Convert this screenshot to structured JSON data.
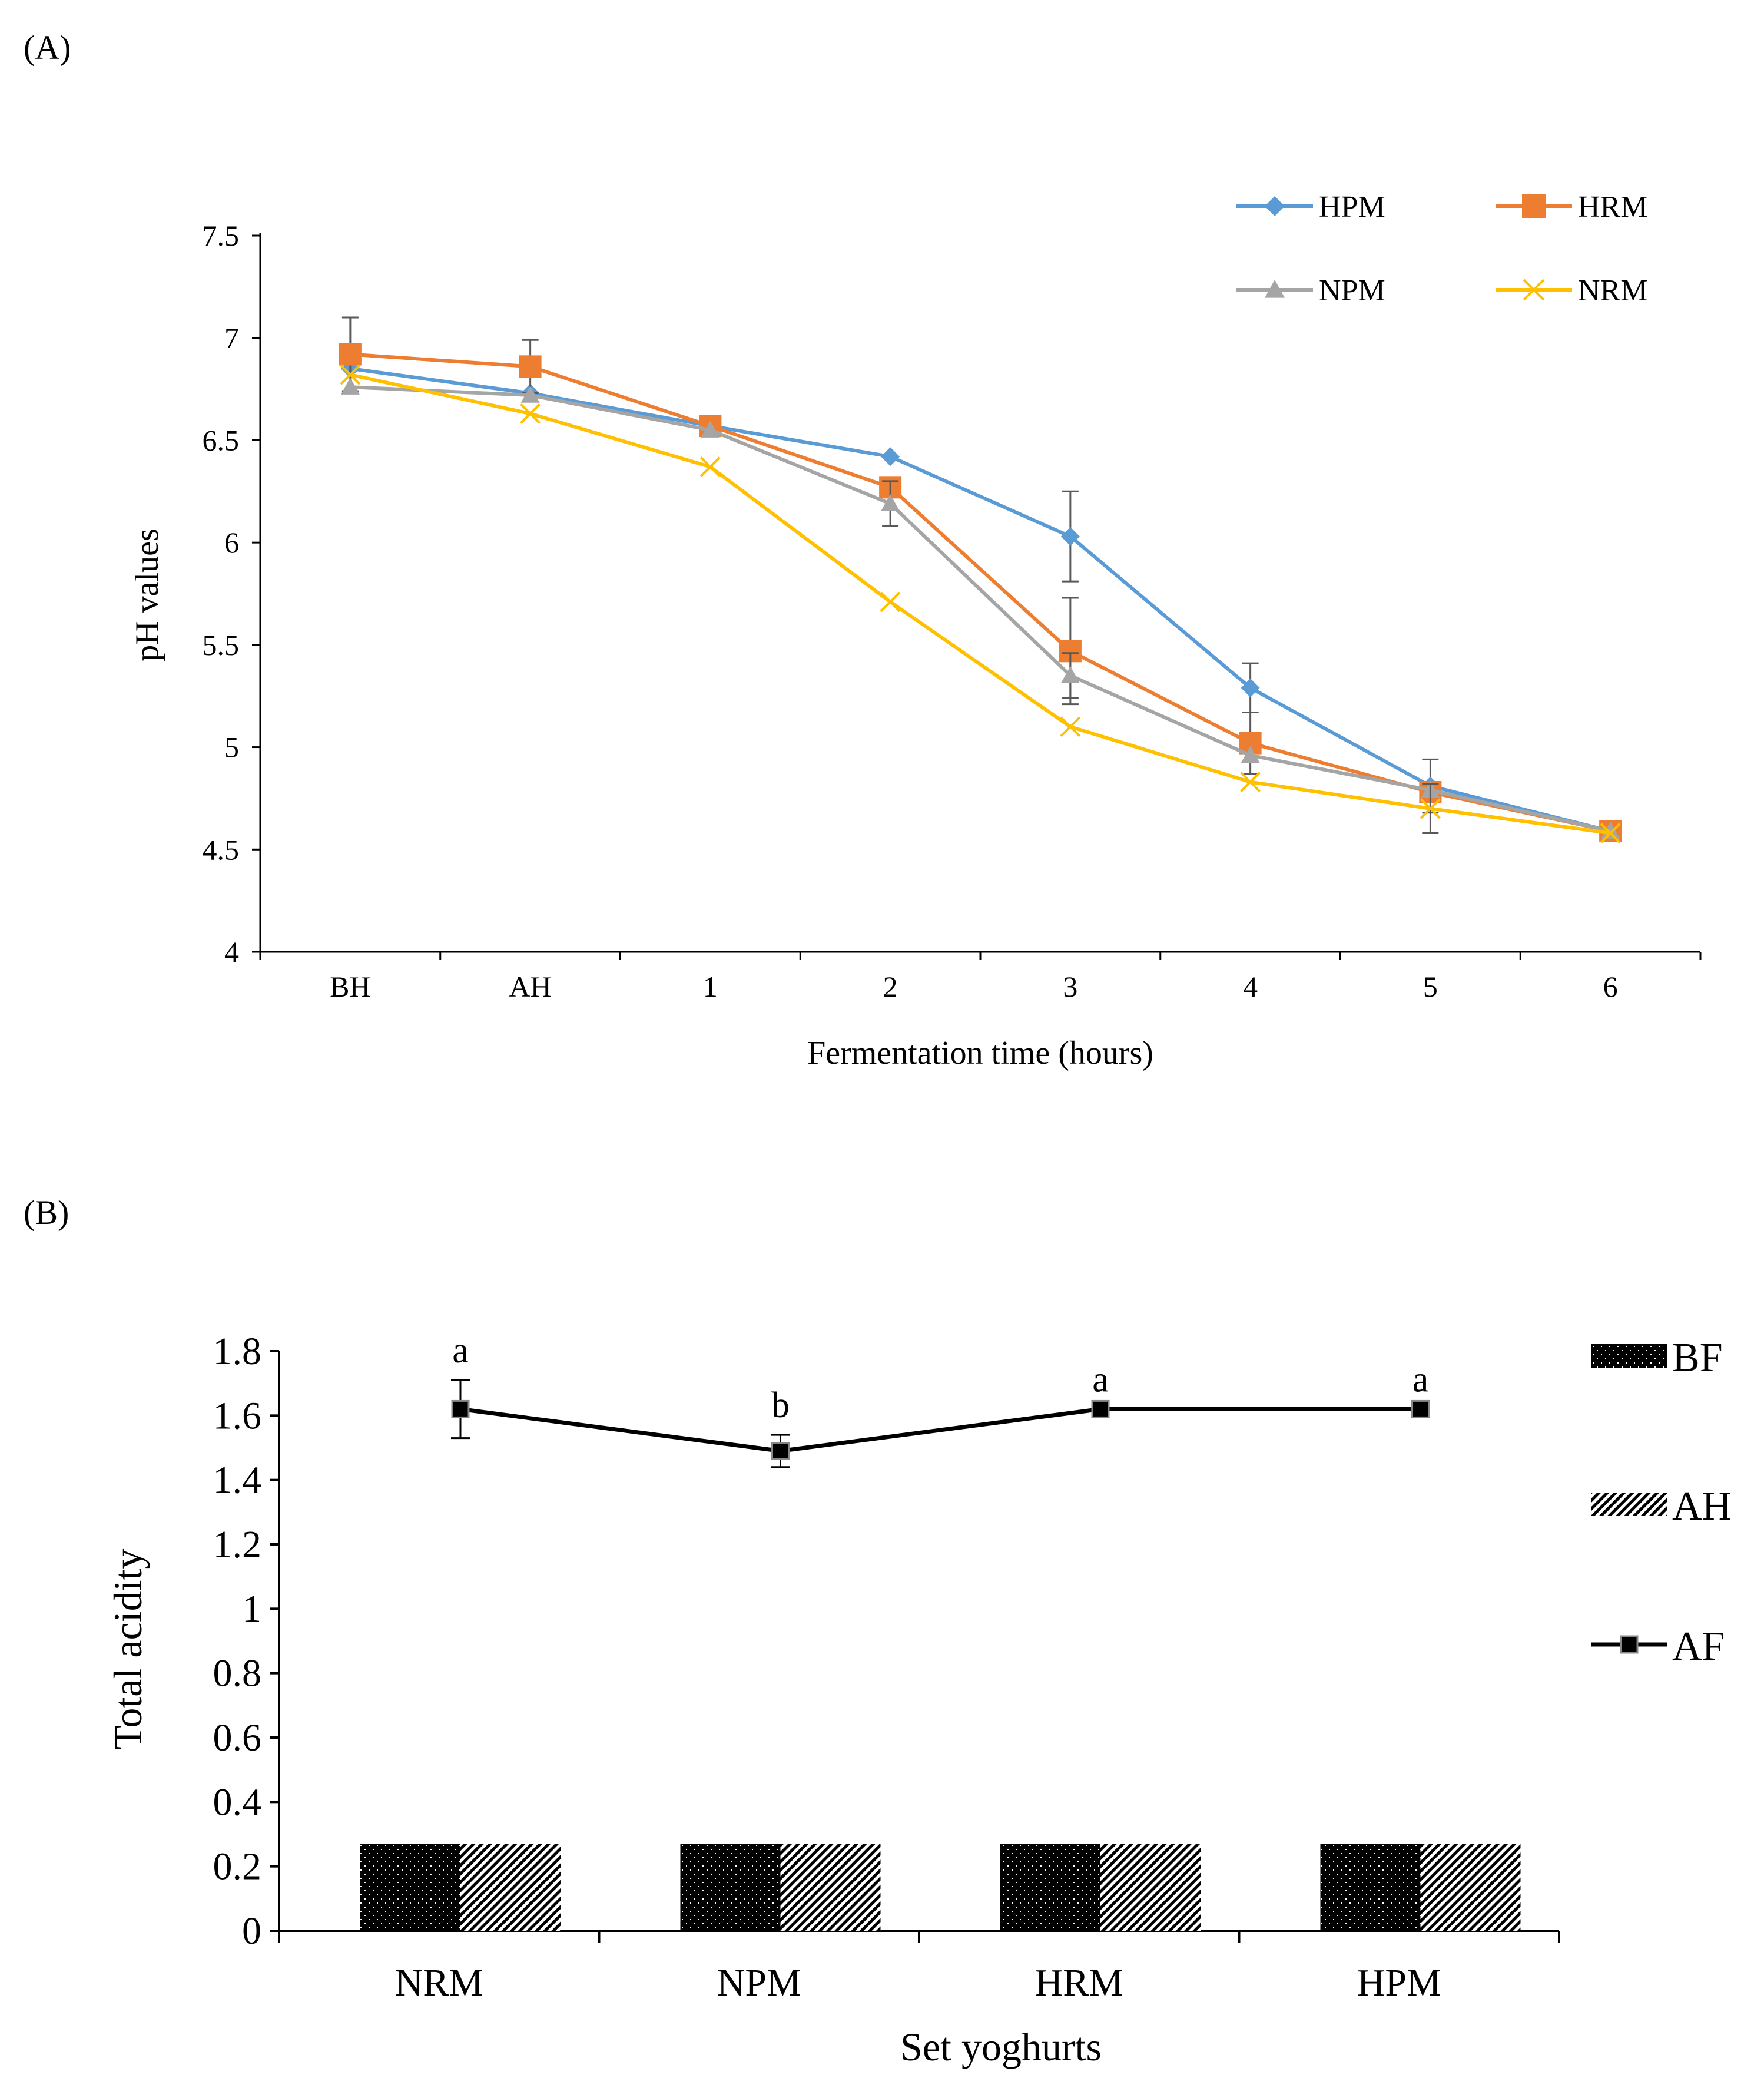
{
  "panel_a_label": "(A)",
  "panel_b_label": "(B)",
  "chart_data": [
    {
      "type": "line",
      "title": "",
      "xlabel": "Fermentation time (hours)",
      "ylabel": "pH values",
      "categories": [
        "BH",
        "AH",
        "1",
        "2",
        "3",
        "4",
        "5",
        "6"
      ],
      "ylim": [
        4,
        7.5
      ],
      "yticks": [
        4,
        4.5,
        5,
        5.5,
        6,
        6.5,
        7,
        7.5
      ],
      "ytick_labels": [
        "4",
        "4.5",
        "5",
        "5.5",
        "6",
        "6.5",
        "7",
        "7.5"
      ],
      "legend_position": "top-right",
      "series": [
        {
          "name": "HPM",
          "color": "#5B9BD5",
          "marker": "diamond",
          "values": [
            6.85,
            6.73,
            6.57,
            6.42,
            6.03,
            5.29,
            4.81,
            4.59
          ],
          "errors": [
            0.0,
            0.0,
            0.0,
            0.0,
            0.22,
            0.12,
            0.13,
            0.0
          ]
        },
        {
          "name": "HRM",
          "color": "#ED7D31",
          "marker": "square",
          "values": [
            6.92,
            6.86,
            6.57,
            6.27,
            5.47,
            5.02,
            4.78,
            4.59
          ],
          "errors": [
            0.18,
            0.13,
            0.0,
            0.0,
            0.26,
            0.15,
            0.0,
            0.0
          ]
        },
        {
          "name": "NPM",
          "color": "#A5A5A5",
          "marker": "triangle",
          "values": [
            6.76,
            6.72,
            6.55,
            6.19,
            5.35,
            4.96,
            4.79,
            4.59
          ],
          "errors": [
            0.0,
            0.0,
            0.0,
            0.11,
            0.11,
            0.0,
            0.0,
            0.0
          ]
        },
        {
          "name": "NRM",
          "color": "#FFC000",
          "marker": "x",
          "values": [
            6.82,
            6.63,
            6.37,
            5.71,
            5.1,
            4.83,
            4.7,
            4.58
          ],
          "errors": [
            0.0,
            0.0,
            0.0,
            0.0,
            0.0,
            0.0,
            0.12,
            0.0
          ]
        }
      ]
    },
    {
      "type": "bar",
      "title": "",
      "xlabel": "Set yoghurts",
      "ylabel": "Total acidity",
      "categories": [
        "NRM",
        "NPM",
        "HRM",
        "HPM"
      ],
      "ylim": [
        0,
        1.8
      ],
      "yticks": [
        0,
        0.2,
        0.4,
        0.6,
        0.8,
        1,
        1.2,
        1.4,
        1.6,
        1.8
      ],
      "ytick_labels": [
        "0",
        "0.2",
        "0.4",
        "0.6",
        "0.8",
        "1",
        "1.2",
        "1.4",
        "1.6",
        "1.8"
      ],
      "legend_position": "right",
      "bar_series": [
        {
          "name": "BF",
          "pattern": "dots",
          "values": [
            0.27,
            0.27,
            0.27,
            0.27
          ]
        },
        {
          "name": "AH",
          "pattern": "hatch",
          "values": [
            0.27,
            0.27,
            0.27,
            0.27
          ]
        }
      ],
      "line_series": {
        "name": "AF",
        "color": "#000000",
        "marker": "square",
        "values": [
          1.62,
          1.49,
          1.62,
          1.62
        ],
        "errors": [
          0.09,
          0.05,
          0.0,
          0.0
        ],
        "significance": [
          "a",
          "b",
          "a",
          "a"
        ]
      }
    }
  ]
}
